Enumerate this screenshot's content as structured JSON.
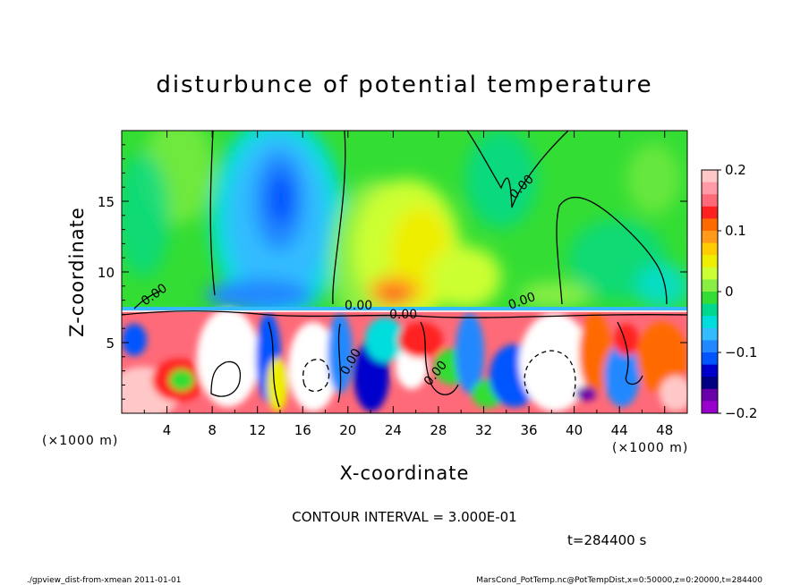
{
  "chart_data": {
    "type": "heatmap",
    "title": "disturbunce of potential temperature",
    "xlabel": "X-coordinate",
    "ylabel": "Z-coordinate",
    "x_unit": "(×1000 m)",
    "z_unit": "(×1000 m)",
    "xlim": [
      0,
      50
    ],
    "ylim": [
      0,
      20
    ],
    "x_ticks": [
      4,
      8,
      12,
      16,
      20,
      24,
      28,
      32,
      36,
      40,
      44,
      48
    ],
    "y_ticks": [
      5,
      10,
      15
    ],
    "colorbar": {
      "ticks": [
        "0.2",
        "0.1",
        "0",
        "−0.1",
        "−0.2"
      ],
      "range": [
        -0.2,
        0.2
      ],
      "colors": [
        "#ffc8c8",
        "#ff9aa6",
        "#ff6a78",
        "#ff2020",
        "#ff6a00",
        "#ff9a1a",
        "#ffcc00",
        "#eeee00",
        "#ccff33",
        "#88ee44",
        "#33dd33",
        "#00d890",
        "#00dddd",
        "#33bbff",
        "#2288ff",
        "#0055ff",
        "#0000cc",
        "#000080",
        "#6a00aa",
        "#9900cc"
      ]
    },
    "contour_labels": [
      "0.00",
      "0.00",
      "0.00",
      "0.00",
      "0.00",
      "0.00",
      "0.00"
    ],
    "features": [
      {
        "kind": "cold-anomaly",
        "x": 14.5,
        "z": 15.5,
        "value": -0.14
      },
      {
        "kind": "cold-anomaly",
        "x": 13.5,
        "z": 12,
        "value": -0.09
      },
      {
        "kind": "warm-anomaly",
        "x": 24,
        "z": 10,
        "value": 0.06
      },
      {
        "kind": "warm-anomaly",
        "x": 28,
        "z": 11,
        "value": 0.05
      },
      {
        "kind": "cold-anomaly",
        "x": 3,
        "z": 14,
        "value": -0.03
      },
      {
        "kind": "cold-anomaly",
        "x": 34,
        "z": 17,
        "value": -0.03
      },
      {
        "kind": "cold-anomaly",
        "x": 47,
        "z": 12,
        "value": -0.02
      }
    ]
  },
  "info": {
    "contour_interval": "CONTOUR INTERVAL = 3.000E-01",
    "time": "t=284400 s"
  },
  "footer": {
    "left": "./gpview_dist-from-xmean   2011-01-01",
    "right": "MarsCond_PotTemp.nc@PotTempDist,x=0:50000,z=0:20000,t=284400"
  }
}
